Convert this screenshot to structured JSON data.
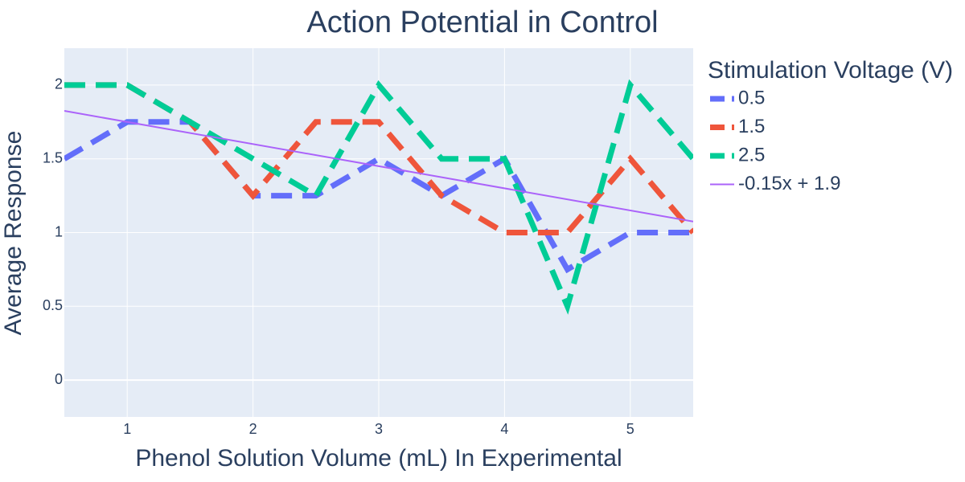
{
  "chart_data": {
    "type": "line",
    "title": "Action Potential in Control",
    "xlabel": "Phenol Solution Volume (mL) In Experimental",
    "ylabel": "Average Response",
    "xlim": [
      0.5,
      5.5
    ],
    "ylim": [
      -0.25,
      2.25
    ],
    "x_ticks": [
      1,
      2,
      3,
      4,
      5
    ],
    "x_tick_labels": [
      "1",
      "2",
      "3",
      "4",
      "5"
    ],
    "y_ticks": [
      0,
      0.5,
      1,
      1.5,
      2
    ],
    "y_tick_labels": [
      "0",
      "0.5",
      "1",
      "1.5",
      "2"
    ],
    "grid": true,
    "legend_title": "Stimulation Voltage (V)",
    "legend_position": "right",
    "plot_background": "#e5ecf6",
    "x": [
      0.5,
      1,
      1.5,
      2,
      2.5,
      3,
      3.5,
      4,
      4.5,
      5,
      5.5
    ],
    "series": [
      {
        "name": "0.5",
        "color": "#636efa",
        "style": "dash",
        "values": [
          1.5,
          1.75,
          1.75,
          1.25,
          1.25,
          1.5,
          1.25,
          1.5,
          0.75,
          1.0,
          1.0
        ]
      },
      {
        "name": "1.5",
        "color": "#ef553b",
        "style": "dash",
        "values": [
          2.0,
          2.0,
          1.75,
          1.25,
          1.75,
          1.75,
          1.25,
          1.0,
          1.0,
          1.5,
          1.0
        ]
      },
      {
        "name": "2.5",
        "color": "#00cc96",
        "style": "dash",
        "values": [
          2.0,
          2.0,
          1.75,
          1.5,
          1.25,
          2.0,
          1.5,
          1.5,
          0.5,
          2.0,
          1.5
        ]
      },
      {
        "name": "-0.15x + 1.9",
        "color": "#ab63fa",
        "style": "solid",
        "trend": {
          "slope": -0.15,
          "intercept": 1.9
        }
      }
    ]
  }
}
